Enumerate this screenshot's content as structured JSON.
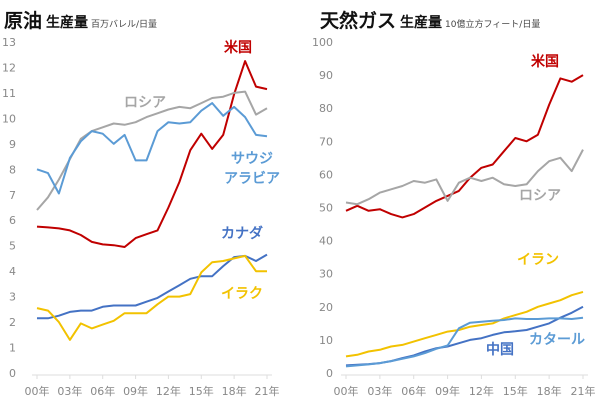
{
  "chart_data": [
    {
      "type": "line",
      "title": "原油",
      "subtitle": "生産量",
      "unit": "百万バレル/日量",
      "ylim": [
        0,
        13
      ],
      "yticks": [
        "0",
        "1",
        "2",
        "3",
        "4",
        "5",
        "6",
        "7",
        "8",
        "9",
        "10",
        "11",
        "12",
        "13"
      ],
      "xticks": [
        "00年",
        "03年",
        "06年",
        "09年",
        "12年",
        "15年",
        "18年",
        "21年"
      ],
      "x": [
        2000,
        2001,
        2002,
        2003,
        2004,
        2005,
        2006,
        2007,
        2008,
        2009,
        2010,
        2011,
        2012,
        2013,
        2014,
        2015,
        2016,
        2017,
        2018,
        2019,
        2020,
        2021
      ],
      "series": [
        {
          "name": "米国",
          "color": "#c00000",
          "values": [
            5.75,
            5.72,
            5.68,
            5.6,
            5.42,
            5.15,
            5.05,
            5.02,
            4.95,
            5.3,
            5.45,
            5.6,
            6.5,
            7.5,
            8.75,
            9.4,
            8.8,
            9.35,
            10.95,
            12.25,
            11.25,
            11.15
          ]
        },
        {
          "name": "ロシア",
          "color": "#a6a6a6",
          "values": [
            6.4,
            6.9,
            7.6,
            8.4,
            9.2,
            9.5,
            9.65,
            9.8,
            9.75,
            9.85,
            10.05,
            10.2,
            10.35,
            10.45,
            10.4,
            10.6,
            10.8,
            10.85,
            11.0,
            11.05,
            10.15,
            10.4
          ]
        },
        {
          "name": "サウジアラビア",
          "color": "#5b9bd5",
          "values": [
            8.0,
            7.85,
            7.05,
            8.45,
            9.1,
            9.5,
            9.4,
            9.0,
            9.35,
            8.35,
            8.35,
            9.5,
            9.85,
            9.8,
            9.85,
            10.3,
            10.6,
            10.1,
            10.45,
            10.05,
            9.35,
            9.3
          ]
        },
        {
          "name": "カナダ",
          "color": "#4472c4",
          "values": [
            2.15,
            2.15,
            2.25,
            2.4,
            2.45,
            2.45,
            2.6,
            2.65,
            2.65,
            2.65,
            2.8,
            2.95,
            3.2,
            3.45,
            3.7,
            3.8,
            3.8,
            4.2,
            4.55,
            4.6,
            4.4,
            4.65
          ]
        },
        {
          "name": "イラク",
          "color": "#f2c200",
          "values": [
            2.55,
            2.45,
            2.0,
            1.3,
            1.95,
            1.75,
            1.9,
            2.05,
            2.35,
            2.35,
            2.35,
            2.7,
            3.0,
            3.0,
            3.1,
            3.95,
            4.35,
            4.4,
            4.5,
            4.6,
            4.0,
            4.0
          ]
        }
      ]
    },
    {
      "type": "line",
      "title": "天然ガス",
      "subtitle": "生産量",
      "unit": "10億立方フィート/日量",
      "ylim": [
        0,
        100
      ],
      "yticks": [
        "0",
        "10",
        "20",
        "30",
        "40",
        "50",
        "60",
        "70",
        "80",
        "90",
        "100"
      ],
      "xticks": [
        "00年",
        "03年",
        "06年",
        "09年",
        "12年",
        "15年",
        "18年",
        "21年"
      ],
      "x": [
        2000,
        2001,
        2002,
        2003,
        2004,
        2005,
        2006,
        2007,
        2008,
        2009,
        2010,
        2011,
        2012,
        2013,
        2014,
        2015,
        2016,
        2017,
        2018,
        2019,
        2020,
        2021
      ],
      "series": [
        {
          "name": "米国",
          "color": "#c00000",
          "values": [
            49,
            50.5,
            49,
            49.5,
            48,
            47,
            48,
            50,
            52,
            53.5,
            55,
            59,
            62,
            63,
            67,
            71,
            70,
            72,
            81,
            89,
            88,
            90
          ]
        },
        {
          "name": "ロシア",
          "color": "#a6a6a6",
          "values": [
            51.5,
            51,
            52.5,
            54.5,
            55.5,
            56.5,
            58,
            57.5,
            58.5,
            52,
            57.5,
            59,
            58,
            59,
            57,
            56.5,
            57,
            61,
            64,
            65,
            61,
            67.5
          ]
        },
        {
          "name": "イラン",
          "color": "#f2c200",
          "values": [
            5,
            5.5,
            6.5,
            7,
            8,
            8.5,
            9.5,
            10.5,
            11.5,
            12.5,
            13,
            14,
            14.5,
            15,
            16.5,
            17.5,
            18.5,
            20,
            21,
            22,
            23.5,
            24.5
          ]
        },
        {
          "name": "中国",
          "color": "#4472c4",
          "values": [
            2.3,
            2.5,
            2.7,
            3,
            3.6,
            4.5,
            5.3,
            6.5,
            7.5,
            8,
            9,
            10,
            10.5,
            11.5,
            12.3,
            12.6,
            13,
            14,
            15,
            16.7,
            18.2,
            20
          ]
        },
        {
          "name": "カタール",
          "color": "#5b9bd5",
          "values": [
            2,
            2.3,
            2.6,
            3,
            3.6,
            4.3,
            5,
            6,
            7.3,
            8.3,
            13.5,
            15.2,
            15.5,
            15.8,
            16,
            16.5,
            16.3,
            16.3,
            16.5,
            16.5,
            16.3,
            16.7
          ]
        }
      ]
    }
  ]
}
